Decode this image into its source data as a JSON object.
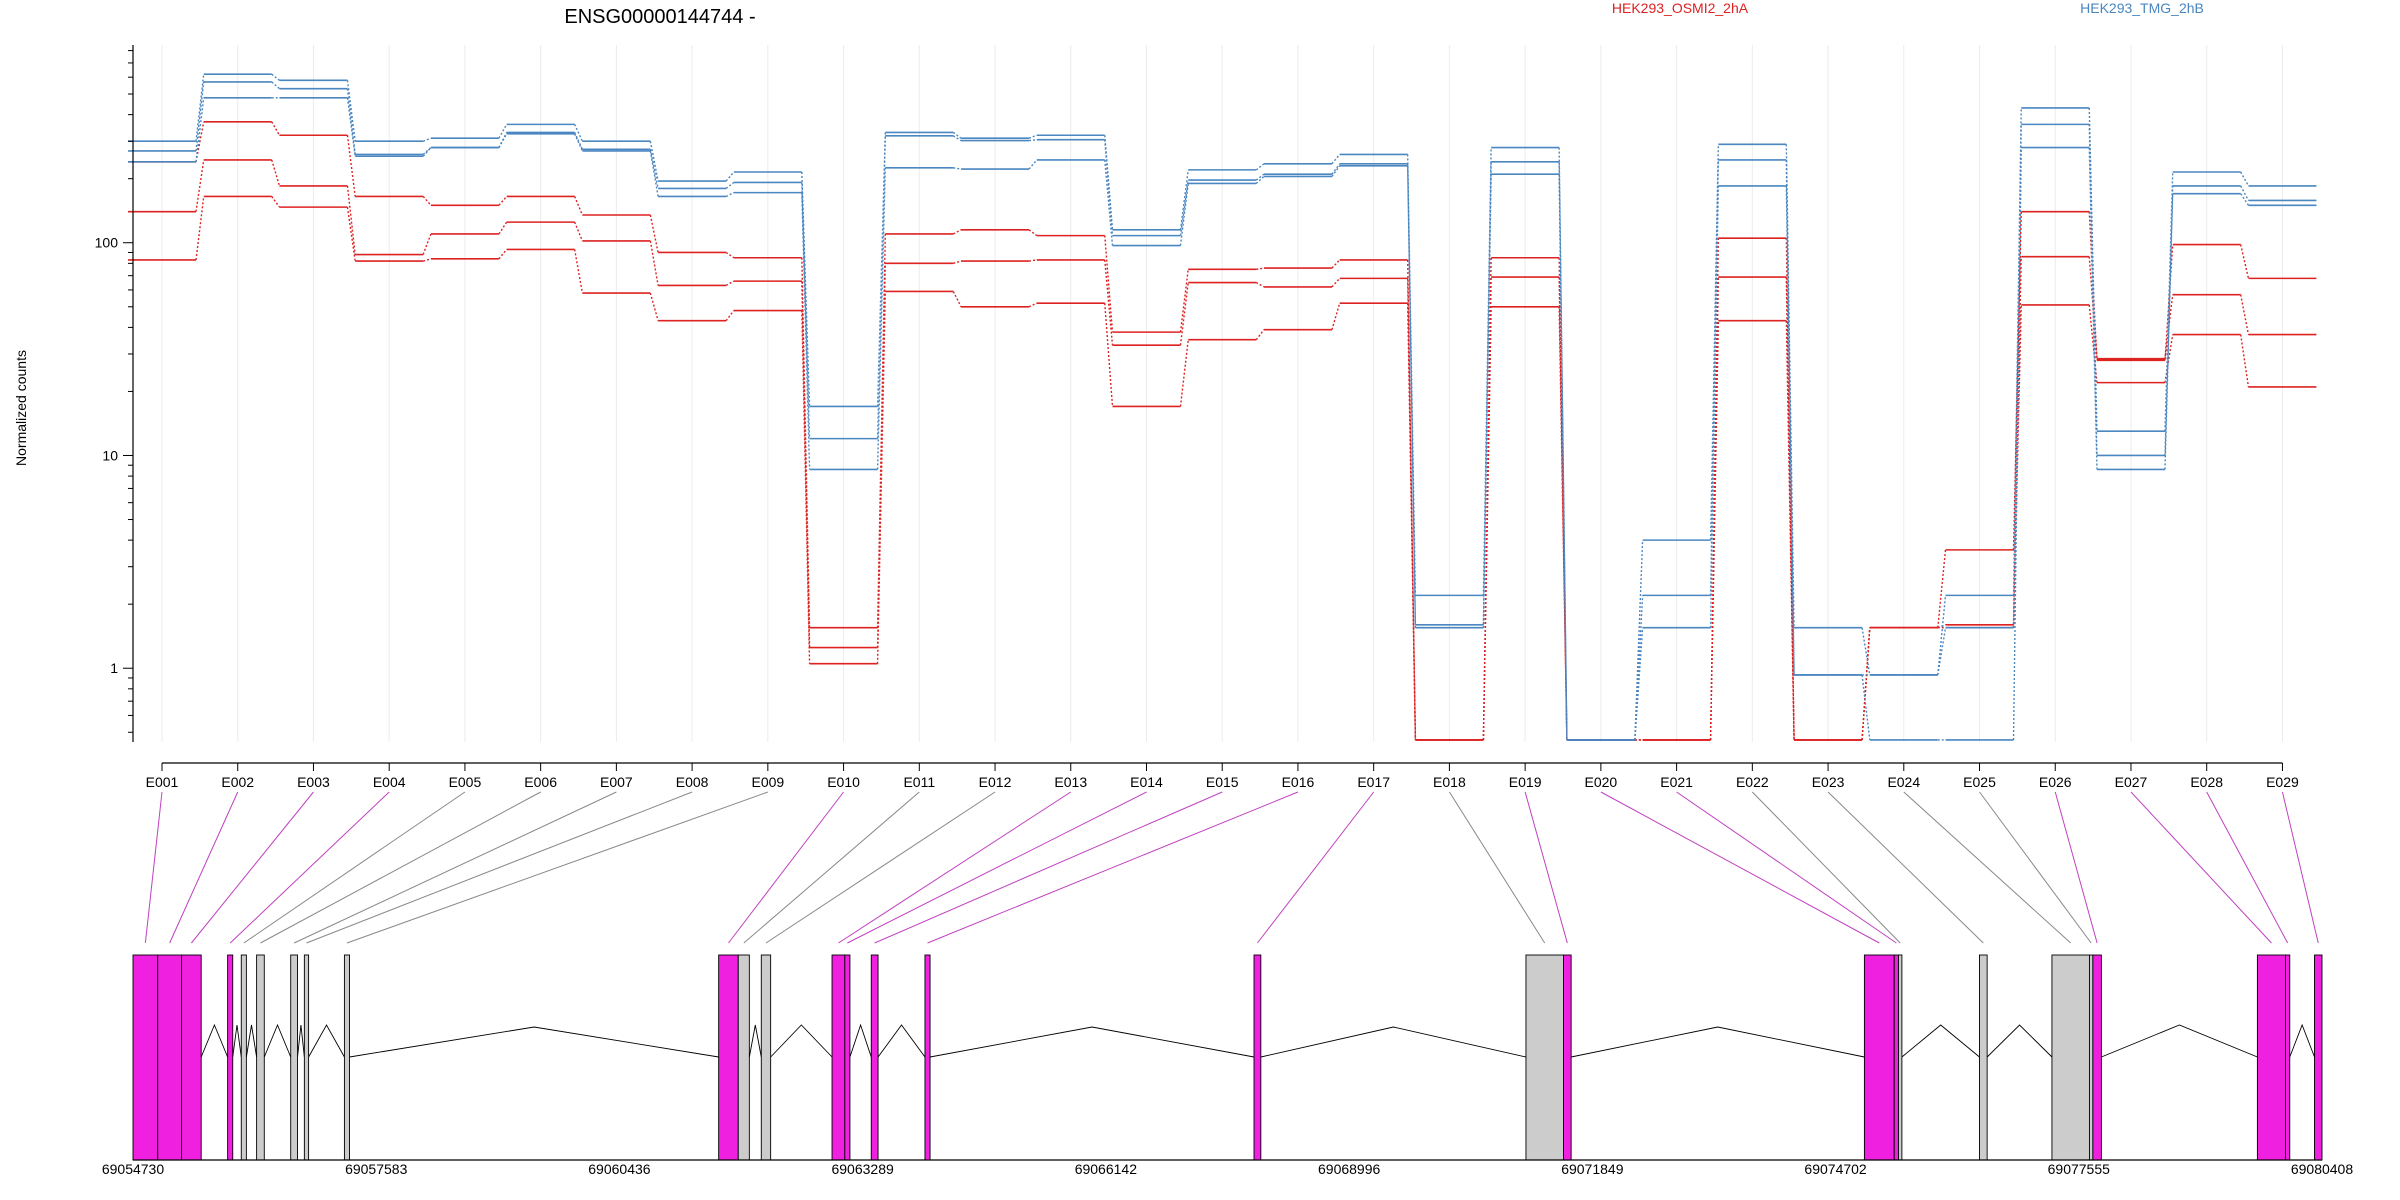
{
  "title": "ENSG00000144744 -",
  "legend": [
    {
      "name": "HEK293_OSMI2_2hA",
      "color": "#dd2222"
    },
    {
      "name": "HEK293_TMG_2hB",
      "color": "#4a86c0"
    }
  ],
  "ylabel": "Normalized counts",
  "colors": {
    "red": "#dd2222",
    "blue": "#4a86c0",
    "exon_spliced": "#f020e0",
    "exon_other": "#cccccc",
    "grid": "#ececec"
  },
  "chart_data": {
    "type": "line",
    "title": "ENSG00000144744 -",
    "ylabel": "Normalized counts",
    "yscale": "log",
    "ylim": [
      0.45,
      850
    ],
    "yticks": [
      "1",
      "10",
      "100"
    ],
    "categories": [
      "E001",
      "E002",
      "E003",
      "E004",
      "E005",
      "E006",
      "E007",
      "E008",
      "E009",
      "E010",
      "E011",
      "E012",
      "E013",
      "E014",
      "E015",
      "E016",
      "E017",
      "E018",
      "E019",
      "E020",
      "E021",
      "E022",
      "E023",
      "E024",
      "E025",
      "E026",
      "E027",
      "E028",
      "E029"
    ],
    "series": [
      {
        "group": "red",
        "values": [
          240,
          370,
          320,
          165,
          150,
          165,
          135,
          90,
          85,
          1.55,
          110,
          115,
          108,
          38,
          75,
          76,
          83,
          0.46,
          85,
          0.46,
          0.46,
          105,
          0.46,
          1.55,
          3.6,
          140,
          28,
          98,
          68
        ]
      },
      {
        "group": "red",
        "values": [
          140,
          245,
          185,
          88,
          110,
          125,
          102,
          63,
          66,
          1.25,
          80,
          82,
          83,
          33,
          65,
          62,
          68,
          0.46,
          69,
          0.46,
          0.46,
          69,
          0.46,
          1.55,
          1.6,
          86,
          28.5,
          57,
          37
        ]
      },
      {
        "group": "red",
        "values": [
          83,
          165,
          147,
          82,
          84,
          93,
          58,
          43,
          48,
          1.05,
          59,
          50,
          52,
          17,
          35,
          39,
          52,
          0.46,
          50,
          0.46,
          0.46,
          43,
          0.46,
          1.55,
          1.55,
          51,
          22,
          37,
          21
        ]
      },
      {
        "group": "blue",
        "values": [
          300,
          620,
          580,
          300,
          310,
          360,
          300,
          195,
          215,
          17,
          330,
          310,
          320,
          115,
          220,
          235,
          260,
          2.2,
          280,
          0.46,
          4.0,
          290,
          1.55,
          0.93,
          2.2,
          430,
          13,
          215,
          185
        ]
      },
      {
        "group": "blue",
        "values": [
          270,
          570,
          530,
          260,
          280,
          330,
          275,
          180,
          192,
          12,
          318,
          302,
          305,
          108,
          197,
          210,
          235,
          1.6,
          240,
          0.46,
          2.2,
          245,
          0.93,
          0.93,
          1.55,
          360,
          10,
          185,
          158
        ]
      },
      {
        "group": "blue",
        "values": [
          240,
          480,
          480,
          255,
          280,
          325,
          270,
          165,
          172,
          8.6,
          225,
          222,
          245,
          97,
          190,
          205,
          230,
          1.55,
          210,
          0.46,
          1.55,
          185,
          0.93,
          0.46,
          0.46,
          280,
          8.6,
          170,
          150
        ]
      }
    ]
  },
  "genome_axis": {
    "ticks": [
      "69054730",
      "69057583",
      "69060436",
      "69063289",
      "69066142",
      "69068996",
      "69071849",
      "69074702",
      "69077555",
      "69080408"
    ],
    "range": [
      69054730,
      69080408
    ]
  },
  "exons": [
    {
      "id": "E001",
      "start": 69054730,
      "end": 69055020,
      "spliced": true
    },
    {
      "id": "E002",
      "start": 69055020,
      "end": 69055300,
      "spliced": true
    },
    {
      "id": "E003",
      "start": 69055300,
      "end": 69055530,
      "spliced": true
    },
    {
      "id": "E004",
      "start": 69055840,
      "end": 69055900,
      "spliced": true
    },
    {
      "id": "E005",
      "start": 69056000,
      "end": 69056060,
      "spliced": false
    },
    {
      "id": "E006",
      "start": 69056180,
      "end": 69056270,
      "spliced": false
    },
    {
      "id": "E007",
      "start": 69056580,
      "end": 69056660,
      "spliced": false
    },
    {
      "id": "E008",
      "start": 69056740,
      "end": 69056790,
      "spliced": false
    },
    {
      "id": "E009",
      "start": 69057210,
      "end": 69057270,
      "spliced": false
    },
    {
      "id": "E010",
      "start": 69061600,
      "end": 69061830,
      "spliced": true
    },
    {
      "id": "E011",
      "start": 69061830,
      "end": 69061960,
      "spliced": false
    },
    {
      "id": "E012",
      "start": 69062100,
      "end": 69062210,
      "spliced": false
    },
    {
      "id": "E013",
      "start": 69062930,
      "end": 69063080,
      "spliced": true
    },
    {
      "id": "E014",
      "start": 69063080,
      "end": 69063140,
      "spliced": true
    },
    {
      "id": "E015",
      "start": 69063390,
      "end": 69063470,
      "spliced": true
    },
    {
      "id": "E016",
      "start": 69064020,
      "end": 69064080,
      "spliced": true
    },
    {
      "id": "E017",
      "start": 69067880,
      "end": 69067960,
      "spliced": true
    },
    {
      "id": "E018",
      "start": 69071070,
      "end": 69071510,
      "spliced": false
    },
    {
      "id": "E019",
      "start": 69071510,
      "end": 69071600,
      "spliced": true
    },
    {
      "id": "E020",
      "start": 69075040,
      "end": 69075390,
      "spliced": true
    },
    {
      "id": "E021",
      "start": 69075390,
      "end": 69075440,
      "spliced": true
    },
    {
      "id": "E022",
      "start": 69075440,
      "end": 69075480,
      "spliced": false
    },
    {
      "id": "E023",
      "start": 69076390,
      "end": 69076480,
      "spliced": false
    },
    {
      "id": "E024",
      "start": 69077240,
      "end": 69077680,
      "spliced": false
    },
    {
      "id": "E025",
      "start": 69077680,
      "end": 69077720,
      "spliced": false
    },
    {
      "id": "E026",
      "start": 69077720,
      "end": 69077820,
      "spliced": true
    },
    {
      "id": "E027",
      "start": 69079650,
      "end": 69079980,
      "spliced": true
    },
    {
      "id": "E028",
      "start": 69079980,
      "end": 69080030,
      "spliced": true
    },
    {
      "id": "E029",
      "start": 69080320,
      "end": 69080408,
      "spliced": true
    }
  ]
}
